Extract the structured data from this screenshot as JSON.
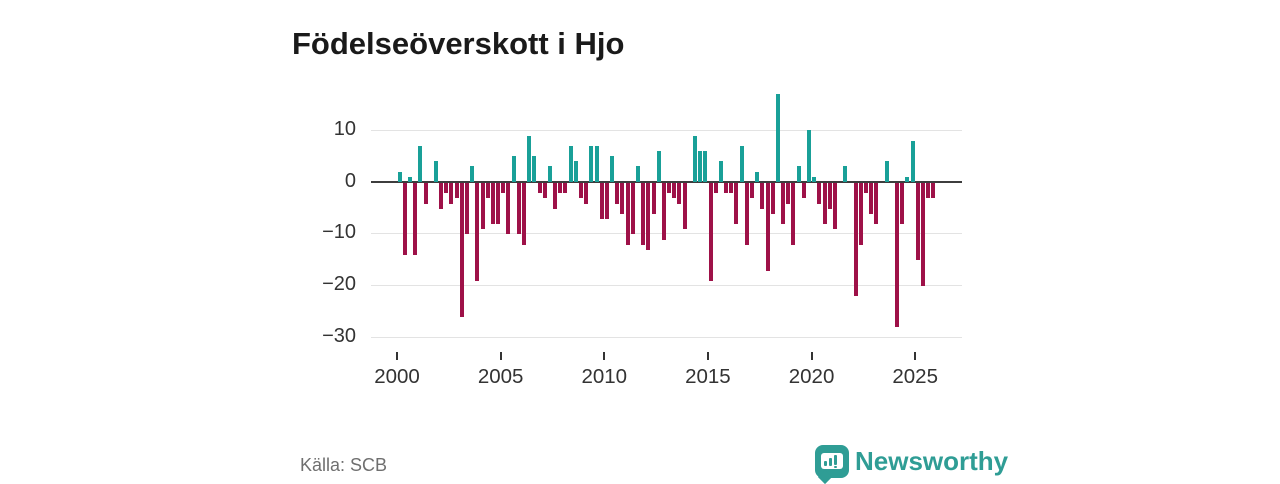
{
  "title": "Födelseöverskott i Hjo",
  "source": "Källa: SCB",
  "brand": {
    "name": "Newsworthy"
  },
  "colors": {
    "background": "#FFFFFF",
    "positive_bar": "#19A098",
    "negative_bar": "#9E1148",
    "gridline": "#E3E3E3",
    "zero_line": "#3D3D3D",
    "axis_text": "#333333",
    "title_text": "#1A1A1A",
    "source_text": "#6F6F6F",
    "brand_teal": "#2F9D95"
  },
  "chart_data": {
    "type": "bar",
    "title": "Födelseöverskott i Hjo",
    "frequency": "quarterly",
    "start_year": 2000,
    "x_tick_years": [
      2000,
      2005,
      2010,
      2015,
      2020,
      2025
    ],
    "x_tick_labels": [
      "2000",
      "2005",
      "2010",
      "2015",
      "2020",
      "2025"
    ],
    "y_ticks": [
      10,
      0,
      -10,
      -20,
      -30
    ],
    "y_tick_labels": [
      "10",
      "0",
      "−10",
      "−20",
      "−30"
    ],
    "ylim": [
      -33,
      18.8
    ],
    "grid": "horizontal-only",
    "legend": "none",
    "values": [
      2,
      -14,
      1,
      -14,
      7,
      -4,
      0,
      4,
      -5,
      -2,
      -4,
      -3,
      -26,
      -10,
      3,
      -19,
      -9,
      -3,
      -8,
      -8,
      -2,
      -10,
      5,
      -10,
      -12,
      9,
      5,
      -2,
      -3,
      3,
      -5,
      -2,
      -2,
      7,
      4,
      -3,
      -4,
      7,
      7,
      -7,
      -7,
      5,
      -4,
      -6,
      -12,
      -10,
      3,
      -12,
      -13,
      -6,
      6,
      -11,
      -2,
      -3,
      -4,
      -9,
      0,
      9,
      6,
      6,
      -19,
      -2,
      4,
      -2,
      -2,
      -8,
      7,
      -12,
      -3,
      2,
      -5,
      -17,
      -6,
      17,
      -8,
      -4,
      -12,
      3,
      -3,
      10,
      1,
      -4,
      -8,
      -5,
      -9,
      0,
      3,
      0,
      -22,
      -12,
      -2,
      -6,
      -8,
      0,
      4,
      0,
      -28,
      -8,
      1,
      8,
      -15,
      -20,
      -3,
      -3
    ]
  }
}
